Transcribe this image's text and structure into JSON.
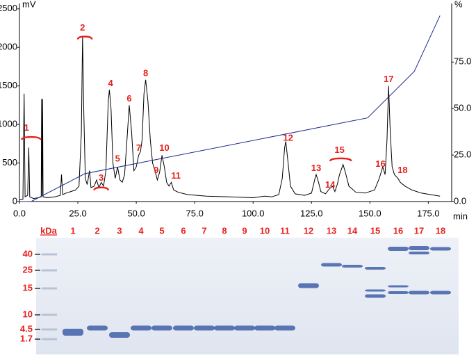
{
  "chart_data": [
    {
      "type": "line",
      "y_label": "mV",
      "y2_label": "%",
      "x_label": "min",
      "xlim": [
        0,
        185
      ],
      "ylim": [
        0,
        2570
      ],
      "y2lim": [
        0,
        106.5
      ],
      "xticks": [
        {
          "value": 0,
          "label": "0.0"
        },
        {
          "value": 25,
          "label": "25.0"
        },
        {
          "value": 50,
          "label": "50.0"
        },
        {
          "value": 75,
          "label": "75.0"
        },
        {
          "value": 100,
          "label": "100.0"
        },
        {
          "value": 125,
          "label": "125.0"
        },
        {
          "value": 150,
          "label": "150.0"
        },
        {
          "value": 175,
          "label": "175.0"
        }
      ],
      "yticks": [
        0,
        500,
        1000,
        1500,
        2000,
        2500
      ],
      "y2ticks": [
        {
          "value": 0,
          "label": "0.0"
        },
        {
          "value": 25,
          "label": "25.0"
        },
        {
          "value": 50,
          "label": "50.0"
        },
        {
          "value": 75,
          "label": "75.0"
        }
      ],
      "series": [
        {
          "color": "#000000",
          "x": [
            0,
            1.5,
            2,
            2.4,
            3.5,
            4,
            4.4,
            6,
            8,
            9.3,
            9.5,
            9.7,
            9.9,
            10.1,
            12,
            15,
            17.5,
            18,
            18.5,
            20,
            22,
            24,
            25.5,
            26.5,
            27,
            27.5,
            28.2,
            29,
            30,
            30.6,
            32,
            33,
            34,
            35,
            36,
            37,
            38,
            38.5,
            39.2,
            40,
            41,
            42,
            43,
            44,
            45,
            46,
            47,
            48,
            49,
            50,
            51,
            51.8,
            52.5,
            53.3,
            54,
            55,
            56,
            57,
            58,
            59,
            60,
            61,
            62,
            63,
            64,
            65,
            66,
            68,
            72,
            80,
            90,
            100,
            105,
            108,
            111,
            112.5,
            113.5,
            114,
            115,
            116,
            118,
            122,
            125,
            126.5,
            127,
            128,
            129,
            131,
            132.5,
            134,
            135,
            136,
            137,
            138.5,
            139.5,
            141,
            144,
            148,
            152,
            154,
            155.5,
            156.5,
            157.3,
            158,
            158.7,
            159.5,
            160.5,
            162,
            163,
            165,
            168,
            172,
            176,
            180
          ],
          "values": [
            20,
            30,
            1400,
            60,
            80,
            700,
            60,
            40,
            50,
            60,
            1330,
            80,
            1330,
            60,
            50,
            60,
            80,
            350,
            90,
            110,
            130,
            150,
            200,
            900,
            2150,
            1200,
            300,
            220,
            400,
            180,
            200,
            280,
            180,
            250,
            200,
            400,
            1300,
            1450,
            1200,
            500,
            300,
            450,
            280,
            250,
            350,
            800,
            1250,
            900,
            400,
            450,
            600,
            650,
            800,
            1400,
            1580,
            1300,
            800,
            500,
            400,
            280,
            380,
            600,
            450,
            250,
            200,
            250,
            150,
            120,
            90,
            70,
            60,
            50,
            70,
            60,
            90,
            300,
            700,
            780,
            500,
            200,
            100,
            80,
            110,
            300,
            350,
            250,
            130,
            100,
            160,
            200,
            130,
            220,
            350,
            480,
            380,
            200,
            120,
            110,
            150,
            300,
            450,
            350,
            800,
            1500,
            900,
            450,
            350,
            300,
            250,
            200,
            150,
            110,
            90,
            70
          ]
        },
        {
          "color": "#1c2a8c",
          "axis": "y2",
          "x": [
            0,
            5,
            28,
            149,
            169,
            180
          ],
          "values": [
            0,
            0,
            15,
            45,
            70,
            100
          ]
        }
      ],
      "annotations": [
        {
          "text": "1",
          "x": 3,
          "y": 950
        },
        {
          "text": "2",
          "x": 27,
          "y": 2250
        },
        {
          "text": "3",
          "x": 35,
          "y": 300
        },
        {
          "text": "4",
          "x": 39,
          "y": 1530
        },
        {
          "text": "5",
          "x": 42,
          "y": 550
        },
        {
          "text": "6",
          "x": 47,
          "y": 1330
        },
        {
          "text": "7",
          "x": 51,
          "y": 690
        },
        {
          "text": "8",
          "x": 54,
          "y": 1660
        },
        {
          "text": "9",
          "x": 58.5,
          "y": 400
        },
        {
          "text": "10",
          "x": 62,
          "y": 690
        },
        {
          "text": "11",
          "x": 67,
          "y": 330
        },
        {
          "text": "12",
          "x": 115,
          "y": 820
        },
        {
          "text": "13",
          "x": 127,
          "y": 430
        },
        {
          "text": "14",
          "x": 133,
          "y": 210
        },
        {
          "text": "15",
          "x": 137,
          "y": 660
        },
        {
          "text": "16",
          "x": 154.5,
          "y": 480
        },
        {
          "text": "17",
          "x": 158,
          "y": 1580
        },
        {
          "text": "18",
          "x": 164,
          "y": 400
        }
      ]
    },
    {
      "type": "gel",
      "y_label": "kDa",
      "yticks": [
        40,
        25,
        15,
        10,
        4.5,
        1.7
      ],
      "categories": [
        "1",
        "2",
        "3",
        "4",
        "5",
        "6",
        "7",
        "8",
        "9",
        "10",
        "11",
        "12",
        "13",
        "14",
        "15",
        "16",
        "17",
        "18"
      ]
    }
  ]
}
